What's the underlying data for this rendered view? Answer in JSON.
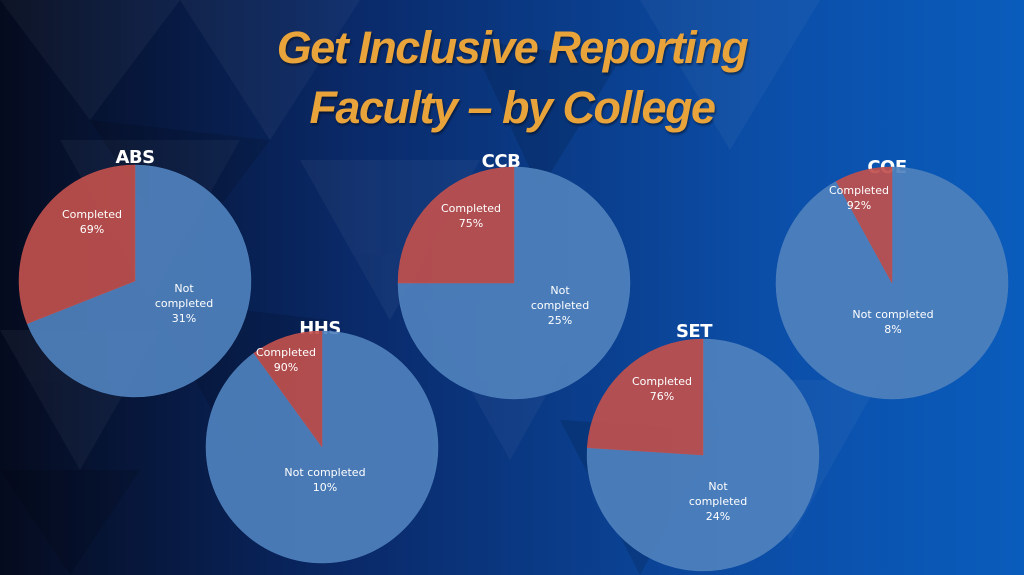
{
  "title": {
    "line1": "Get Inclusive Reporting",
    "line2": "Faculty – by College"
  },
  "colors": {
    "completed": "#4f81bd",
    "not_completed": "#c0504d",
    "title": "#e8a33a",
    "label": "#ffffff"
  },
  "chart_data": [
    {
      "type": "pie",
      "title": "ABS",
      "slices": [
        {
          "label": "Completed",
          "percent_text": "69%",
          "value": 69
        },
        {
          "label": "Not completed",
          "percent_text": "31%",
          "value": 31
        }
      ]
    },
    {
      "type": "pie",
      "title": "CCB",
      "slices": [
        {
          "label": "Completed",
          "percent_text": "75%",
          "value": 75
        },
        {
          "label": "Not completed",
          "percent_text": "25%",
          "value": 25
        }
      ]
    },
    {
      "type": "pie",
      "title": "COE",
      "slices": [
        {
          "label": "Completed",
          "percent_text": "92%",
          "value": 92
        },
        {
          "label": "Not completed",
          "percent_text": "8%",
          "value": 8
        }
      ]
    },
    {
      "type": "pie",
      "title": "HHS",
      "slices": [
        {
          "label": "Completed",
          "percent_text": "90%",
          "value": 90
        },
        {
          "label": "Not completed",
          "percent_text": "10%",
          "value": 10
        }
      ]
    },
    {
      "type": "pie",
      "title": "SET",
      "slices": [
        {
          "label": "Completed",
          "percent_text": "76%",
          "value": 76
        },
        {
          "label": "Not completed",
          "percent_text": "24%",
          "value": 24
        }
      ]
    }
  ]
}
